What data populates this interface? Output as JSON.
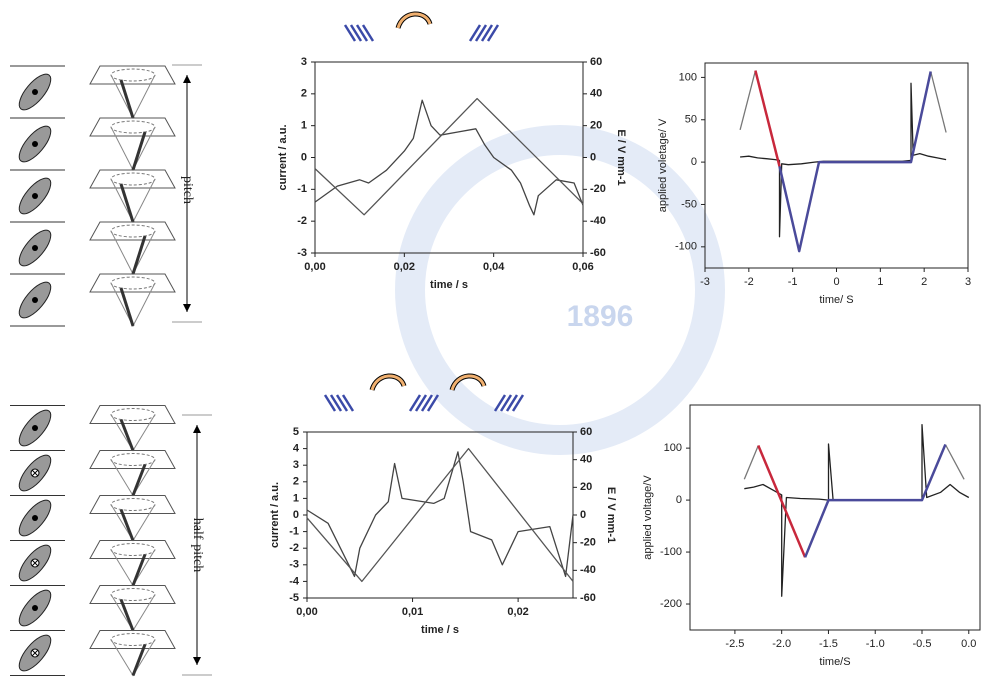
{
  "figure": {
    "top_label": "pitch",
    "bottom_label": "half-pitch",
    "watermark": "1896"
  },
  "chart_data": [
    {
      "type": "line",
      "xlabel": "time / s",
      "ylabel": "current / a.u.",
      "y2label": "E / V mm-1",
      "xlim": [
        0,
        0.06
      ],
      "xticks": [
        {
          "value": 0,
          "label": "0,00"
        },
        {
          "value": 0.02,
          "label": "0,02"
        },
        {
          "value": 0.04,
          "label": "0,04"
        },
        {
          "value": 0.06,
          "label": "0,06"
        }
      ],
      "ylim": [
        -3,
        3
      ],
      "yticks": [
        -3,
        -2,
        -1,
        0,
        1,
        2,
        3
      ],
      "y2lim": [
        -60,
        60
      ],
      "y2ticks": [
        -60,
        -40,
        -20,
        0,
        20,
        40,
        60
      ],
      "series": [
        {
          "color": "#444444",
          "x": [
            0,
            0.005,
            0.01,
            0.012,
            0.016,
            0.02,
            0.022,
            0.024,
            0.026,
            0.028,
            0.032,
            0.036,
            0.038,
            0.04,
            0.044,
            0.046,
            0.048,
            0.049,
            0.05,
            0.054,
            0.058,
            0.06
          ],
          "values": [
            -1.4,
            -0.9,
            -0.7,
            -0.8,
            -0.4,
            0.2,
            0.6,
            1.8,
            1.0,
            0.7,
            0.8,
            0.9,
            0.4,
            0.0,
            -0.4,
            -0.8,
            -1.5,
            -1.8,
            -1.2,
            -0.7,
            -0.8,
            -1.5
          ]
        },
        {
          "color": "#555555",
          "axis": "y2",
          "x": [
            0,
            0.011,
            0.0363,
            0.06
          ],
          "values": [
            -7,
            -36,
            37,
            -29
          ]
        }
      ]
    },
    {
      "type": "line",
      "xlabel": "time/ S",
      "ylabel": "applied voletage/ V",
      "xlim": [
        -3,
        3
      ],
      "xticks": [
        -3,
        -2,
        -1,
        0,
        1,
        2,
        3
      ],
      "ylim": [
        -125,
        117
      ],
      "yticks": [
        -100,
        -50,
        0,
        50,
        100
      ],
      "series": [
        {
          "color": "#777777",
          "x": [
            -2.2,
            -1.85
          ],
          "values": [
            38,
            108
          ]
        },
        {
          "color": "#777777",
          "x": [
            2.15,
            2.5
          ],
          "values": [
            107,
            35
          ]
        },
        {
          "color": "#222222",
          "x": [
            -2.2,
            -2.0,
            -1.8,
            -1.6,
            -1.4,
            -1.3,
            -1.3,
            -1.25,
            -1.1,
            -0.8,
            -0.5,
            -0.3,
            0,
            0.5,
            1,
            1.5,
            1.7,
            1.7,
            1.75,
            1.9,
            2.1,
            2.3,
            2.5
          ],
          "values": [
            6,
            7,
            5,
            4,
            3,
            2,
            -88,
            -2,
            -3,
            -2,
            0,
            1,
            1,
            1,
            1,
            1,
            2,
            93,
            8,
            10,
            7,
            5,
            3
          ]
        },
        {
          "color": "#c8283c",
          "width": 2.5,
          "x": [
            -1.85,
            -1.3
          ],
          "values": [
            108,
            -5
          ]
        },
        {
          "color": "#4a4a9a",
          "width": 2.5,
          "x": [
            -1.3,
            -0.85,
            -0.4,
            1.7,
            2.15
          ],
          "values": [
            -5,
            -105,
            0,
            0,
            107
          ]
        }
      ]
    },
    {
      "type": "line",
      "xlabel": "time / s",
      "ylabel": "current / a.u.",
      "y2label": "E / V mm-1",
      "xlim": [
        0,
        0.0252
      ],
      "xticks": [
        {
          "value": 0,
          "label": "0,00"
        },
        {
          "value": 0.01,
          "label": "0,01"
        },
        {
          "value": 0.02,
          "label": "0,02"
        }
      ],
      "ylim": [
        -5,
        5
      ],
      "yticks": [
        -5,
        -4,
        -3,
        -2,
        -1,
        0,
        1,
        2,
        3,
        4,
        5
      ],
      "y2lim": [
        -60,
        60
      ],
      "y2ticks": [
        -60,
        -40,
        -20,
        0,
        20,
        40,
        60
      ],
      "series": [
        {
          "color": "#444444",
          "x": [
            0,
            0.002,
            0.0045,
            0.005,
            0.0065,
            0.0077,
            0.0083,
            0.009,
            0.012,
            0.013,
            0.0143,
            0.0148,
            0.0155,
            0.0175,
            0.0185,
            0.02,
            0.023,
            0.0245,
            0.0252
          ],
          "values": [
            0.3,
            -0.5,
            -3.7,
            -2,
            0,
            0.8,
            3.1,
            1,
            0.7,
            1,
            3.8,
            2,
            -1,
            -1.5,
            -3,
            -1,
            -0.7,
            -3.7,
            0
          ]
        },
        {
          "color": "#555555",
          "axis": "y2",
          "x": [
            0,
            0.0052,
            0.0153,
            0.0252
          ],
          "values": [
            -2,
            -48,
            48,
            -48
          ]
        }
      ]
    },
    {
      "type": "line",
      "xlabel": "time/S",
      "ylabel": "applied voltage/V",
      "xlim": [
        -2.98,
        0.12
      ],
      "xticks": [
        -2.5,
        {
          "value": -2,
          "label": "-2.0"
        },
        -1.5,
        {
          "value": -1,
          "label": "-1.0"
        },
        -0.5,
        {
          "value": 0,
          "label": "0.0"
        }
      ],
      "ylim": [
        -250,
        183
      ],
      "yticks": [
        -200,
        -100,
        0,
        100
      ],
      "series": [
        {
          "color": "#777777",
          "x": [
            -2.4,
            -2.25
          ],
          "values": [
            40,
            105
          ]
        },
        {
          "color": "#777777",
          "x": [
            -0.25,
            -0.05
          ],
          "values": [
            107,
            40
          ]
        },
        {
          "color": "#222222",
          "x": [
            -2.4,
            -2.3,
            -2.2,
            -2.1,
            -2.05,
            -2.0,
            -2.0,
            -1.95,
            -1.8,
            -1.6,
            -1.5,
            -1.5,
            -1.45,
            -1.2,
            -0.8,
            -0.5,
            -0.5,
            -0.45,
            -0.3,
            -0.2,
            -0.1,
            0
          ],
          "values": [
            22,
            25,
            30,
            20,
            15,
            10,
            -185,
            5,
            3,
            2,
            0,
            108,
            0,
            0,
            0,
            0,
            145,
            5,
            15,
            30,
            15,
            5
          ]
        },
        {
          "color": "#c8283c",
          "width": 2.5,
          "x": [
            -2.25,
            -1.75
          ],
          "values": [
            105,
            -110
          ]
        },
        {
          "color": "#4a4a9a",
          "width": 2.5,
          "x": [
            -1.75,
            -1.5,
            -0.5,
            -0.25
          ],
          "values": [
            -110,
            0,
            0,
            107
          ]
        }
      ]
    }
  ]
}
